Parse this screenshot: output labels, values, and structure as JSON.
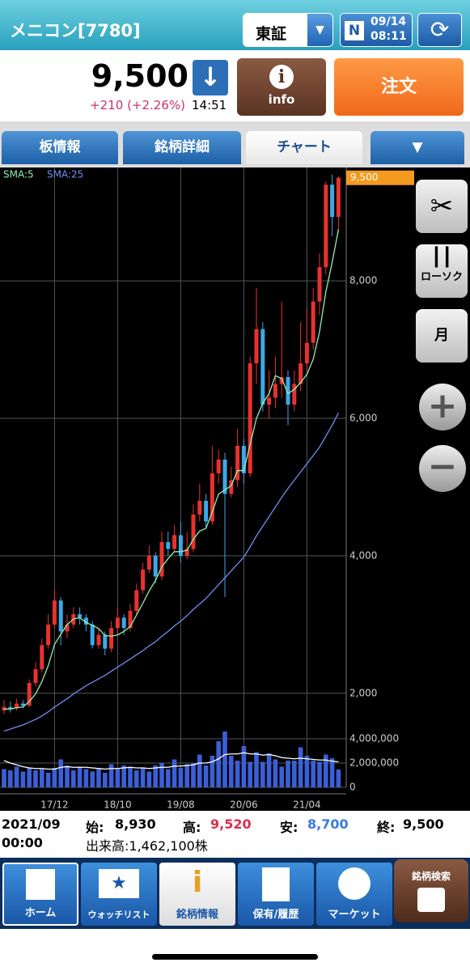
{
  "header": {
    "title": "メニコン[7780]",
    "market": "東証",
    "badge": "N",
    "date": "09/14",
    "time": "08:11"
  },
  "quote": {
    "price": "9,500",
    "change": "+210 (+2.26%)",
    "time": "14:51",
    "info": "info",
    "order": "注文"
  },
  "tabs": [
    "板情報",
    "銘柄詳細",
    "チャート"
  ],
  "side_buttons": {
    "candle": "ローソク",
    "period": "月"
  },
  "chart_data": {
    "type": "candlestick",
    "categories": [
      null,
      null,
      null,
      null,
      null,
      null,
      null,
      null,
      "17/12",
      null,
      null,
      null,
      null,
      null,
      null,
      null,
      null,
      null,
      "18/10",
      null,
      null,
      null,
      null,
      null,
      null,
      null,
      null,
      null,
      "19/08",
      null,
      null,
      null,
      null,
      null,
      null,
      null,
      null,
      null,
      "20/06",
      null,
      null,
      null,
      null,
      null,
      null,
      null,
      null,
      null,
      "21/04",
      null,
      null,
      null,
      null,
      null
    ],
    "open": [
      1750,
      1800,
      1780,
      1850,
      1820,
      2150,
      2350,
      2700,
      3000,
      3350,
      2900,
      3000,
      3150,
      3100,
      3000,
      2700,
      2850,
      2650,
      2950,
      3100,
      2950,
      3200,
      3500,
      3800,
      4000,
      3700,
      4200,
      4100,
      4300,
      4000,
      4100,
      4600,
      4800,
      4500,
      5200,
      5400,
      4900,
      5100,
      5600,
      5200,
      6800,
      7300,
      6200,
      6300,
      6500,
      6600,
      6200,
      6500,
      6800,
      7100,
      7700,
      8200,
      9400,
      8930
    ],
    "high": [
      1900,
      1880,
      1920,
      1900,
      2200,
      2450,
      2800,
      3150,
      3500,
      3400,
      3150,
      3250,
      3250,
      3150,
      3050,
      2950,
      2900,
      3050,
      3250,
      3150,
      3300,
      3600,
      3900,
      4150,
      4050,
      4350,
      4350,
      4450,
      4500,
      4350,
      4750,
      5050,
      4900,
      5600,
      5550,
      5500,
      5300,
      5850,
      5700,
      6900,
      7900,
      7400,
      6700,
      6900,
      7700,
      6700,
      6700,
      7400,
      7600,
      7900,
      8400,
      9450,
      9550,
      9520
    ],
    "low": [
      1700,
      1720,
      1750,
      1780,
      1800,
      2100,
      2300,
      2650,
      2950,
      2700,
      2800,
      2950,
      3000,
      2900,
      2650,
      2650,
      2550,
      2600,
      2850,
      2850,
      2900,
      3150,
      3450,
      3750,
      3600,
      3650,
      4000,
      4050,
      3900,
      3950,
      4050,
      4500,
      4400,
      4450,
      5050,
      3400,
      4850,
      5000,
      5050,
      5150,
      6500,
      6100,
      6000,
      6150,
      6300,
      5900,
      6100,
      6400,
      6700,
      7000,
      7500,
      8100,
      8650,
      8700
    ],
    "close": [
      1800,
      1780,
      1850,
      1820,
      2150,
      2350,
      2700,
      3000,
      3350,
      2900,
      3000,
      3150,
      3100,
      3000,
      2700,
      2850,
      2650,
      2950,
      3100,
      2950,
      3200,
      3500,
      3800,
      4000,
      3700,
      4200,
      4100,
      4300,
      4000,
      4100,
      4600,
      4800,
      4500,
      5200,
      5400,
      4900,
      5100,
      5600,
      5200,
      6800,
      7300,
      6200,
      6300,
      6500,
      6600,
      6200,
      6500,
      6800,
      7100,
      7700,
      8200,
      9400,
      8930,
      9500
    ],
    "up_color": "#e8322e",
    "down_color": "#3ea8e6",
    "series": [
      {
        "name": "SMA:5",
        "color": "#8ff0b0",
        "values": [
          1770,
          1770,
          1790,
          1800,
          1880,
          1990,
          2170,
          2400,
          2710,
          2860,
          3000,
          3080,
          3100,
          3030,
          2990,
          2940,
          2840,
          2830,
          2850,
          2900,
          2970,
          3140,
          3310,
          3490,
          3640,
          3840,
          3960,
          4060,
          4060,
          4080,
          4240,
          4360,
          4400,
          4640,
          4900,
          4960,
          5020,
          5240,
          5240,
          5620,
          6000,
          6220,
          6360,
          6620,
          6580,
          6360,
          6420,
          6520,
          6640,
          6860,
          7260,
          7840,
          8270,
          8750
        ]
      },
      {
        "name": "SMA:25",
        "color": "#6f8ff0",
        "values": [
          1450,
          1480,
          1510,
          1540,
          1580,
          1620,
          1670,
          1730,
          1800,
          1860,
          1920,
          1990,
          2050,
          2110,
          2160,
          2210,
          2260,
          2320,
          2380,
          2440,
          2500,
          2560,
          2620,
          2690,
          2750,
          2830,
          2900,
          2980,
          3050,
          3130,
          3220,
          3300,
          3380,
          3480,
          3580,
          3680,
          3780,
          3880,
          3980,
          4130,
          4290,
          4430,
          4570,
          4710,
          4850,
          4980,
          5100,
          5220,
          5340,
          5460,
          5580,
          5740,
          5900,
          6080
        ]
      }
    ],
    "volume": {
      "color": "#3b5fd6",
      "values": [
        1500000,
        1400000,
        1700000,
        1300000,
        1600000,
        1400000,
        1500000,
        1200000,
        1600000,
        2300000,
        1800000,
        1400000,
        1700000,
        1500000,
        1300000,
        1600000,
        1200000,
        1900000,
        1500000,
        1800000,
        1700000,
        1400000,
        1600000,
        1300000,
        1800000,
        2000000,
        1500000,
        2300000,
        1600000,
        1900000,
        2000000,
        2700000,
        1800000,
        2600000,
        3800000,
        4600000,
        2600000,
        2200000,
        3400000,
        2100000,
        2900000,
        2100000,
        2800000,
        2300000,
        1700000,
        2200000,
        2200000,
        3300000,
        2600000,
        2200000,
        2100000,
        2700000,
        2400000,
        1462100
      ]
    },
    "volume_ma": {
      "color": "#ffffff",
      "values": [
        2200000,
        2000000,
        1850000,
        1700000,
        1600000,
        1550000,
        1550000,
        1500000,
        1500000,
        1650000,
        1700000,
        1650000,
        1650000,
        1650000,
        1600000,
        1550000,
        1500000,
        1550000,
        1550000,
        1600000,
        1650000,
        1600000,
        1600000,
        1550000,
        1600000,
        1650000,
        1650000,
        1750000,
        1750000,
        1800000,
        1850000,
        2000000,
        2000000,
        2100000,
        2350000,
        2700000,
        2750000,
        2750000,
        2850000,
        2750000,
        2750000,
        2650000,
        2700000,
        2600000,
        2450000,
        2400000,
        2350000,
        2400000,
        2350000,
        2300000,
        2250000,
        2250000,
        2150000,
        2100000
      ]
    },
    "current_price": {
      "value": 9500,
      "label": "9,500"
    },
    "ylim": [
      1550,
      9650
    ],
    "yticks": [
      {
        "value": 2000,
        "label": "2,000"
      },
      {
        "value": 4000,
        "label": "4,000"
      },
      {
        "value": 6000,
        "label": "6,000"
      },
      {
        "value": 8000,
        "label": "8,000"
      }
    ],
    "y2lim": [
      0,
      4900000
    ],
    "y2ticks": [
      0,
      {
        "value": 2000000,
        "label": "2,000,000"
      },
      {
        "value": 4000000,
        "label": "4,000,000"
      }
    ],
    "grid": true
  },
  "info": {
    "period": "2021/09",
    "period_time": "00:00",
    "open_label": "始:",
    "open": "8,930",
    "high_label": "高:",
    "high": "9,520",
    "low_label": "安:",
    "low": "8,700",
    "close_label": "終:",
    "close": "9,500",
    "volume": "出来高:1,462,100株"
  },
  "nav": [
    "ホーム",
    "ウォッチリスト",
    "銘柄情報",
    "保有/履歴",
    "マーケット",
    "銘柄検索"
  ]
}
